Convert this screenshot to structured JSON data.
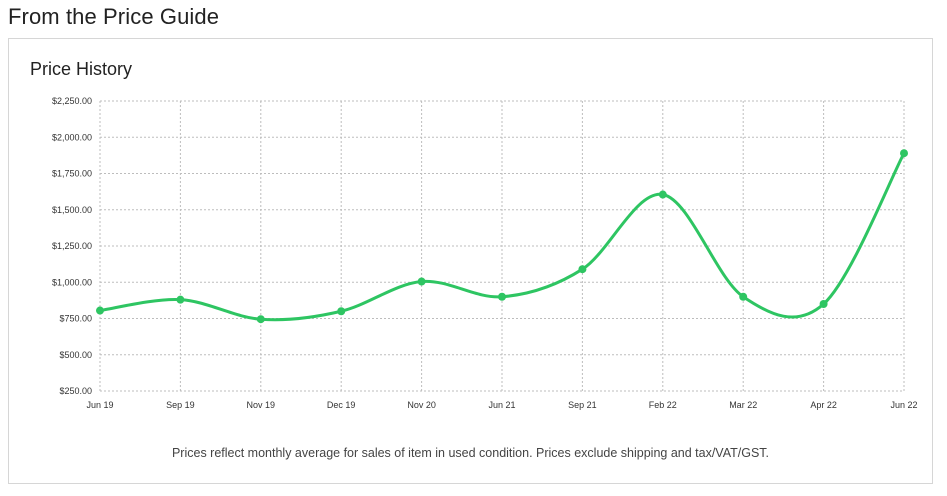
{
  "header": {
    "title": "From the Price Guide"
  },
  "card": {
    "title": "Price History",
    "footnote": "Prices reflect monthly average for sales of item in used condition. Prices exclude shipping and tax/VAT/GST."
  },
  "colors": {
    "line": "#2ec562",
    "grid": "#bdbdbd",
    "border": "#d6d6d6"
  },
  "chart_data": {
    "type": "line",
    "title": "Price History",
    "categories": [
      "Jun 19",
      "Sep 19",
      "Nov 19",
      "Dec 19",
      "Nov 20",
      "Jun 21",
      "Sep 21",
      "Feb 22",
      "Mar 22",
      "Apr 22",
      "Jun 22"
    ],
    "series": [
      {
        "values": [
          805,
          880,
          745,
          800,
          1005,
          900,
          1090,
          1605,
          900,
          850,
          1890
        ]
      }
    ],
    "y_ticks": [
      250,
      500,
      750,
      1000,
      1250,
      1500,
      1750,
      2000,
      2250
    ],
    "y_tick_labels": [
      "$250.00",
      "$500.00",
      "$750.00",
      "$1,000.00",
      "$1,250.00",
      "$1,500.00",
      "$1,750.00",
      "$2,000.00",
      "$2,250.00"
    ],
    "ylim": [
      250,
      2250
    ],
    "grid": true,
    "xlabel": "",
    "ylabel": ""
  }
}
